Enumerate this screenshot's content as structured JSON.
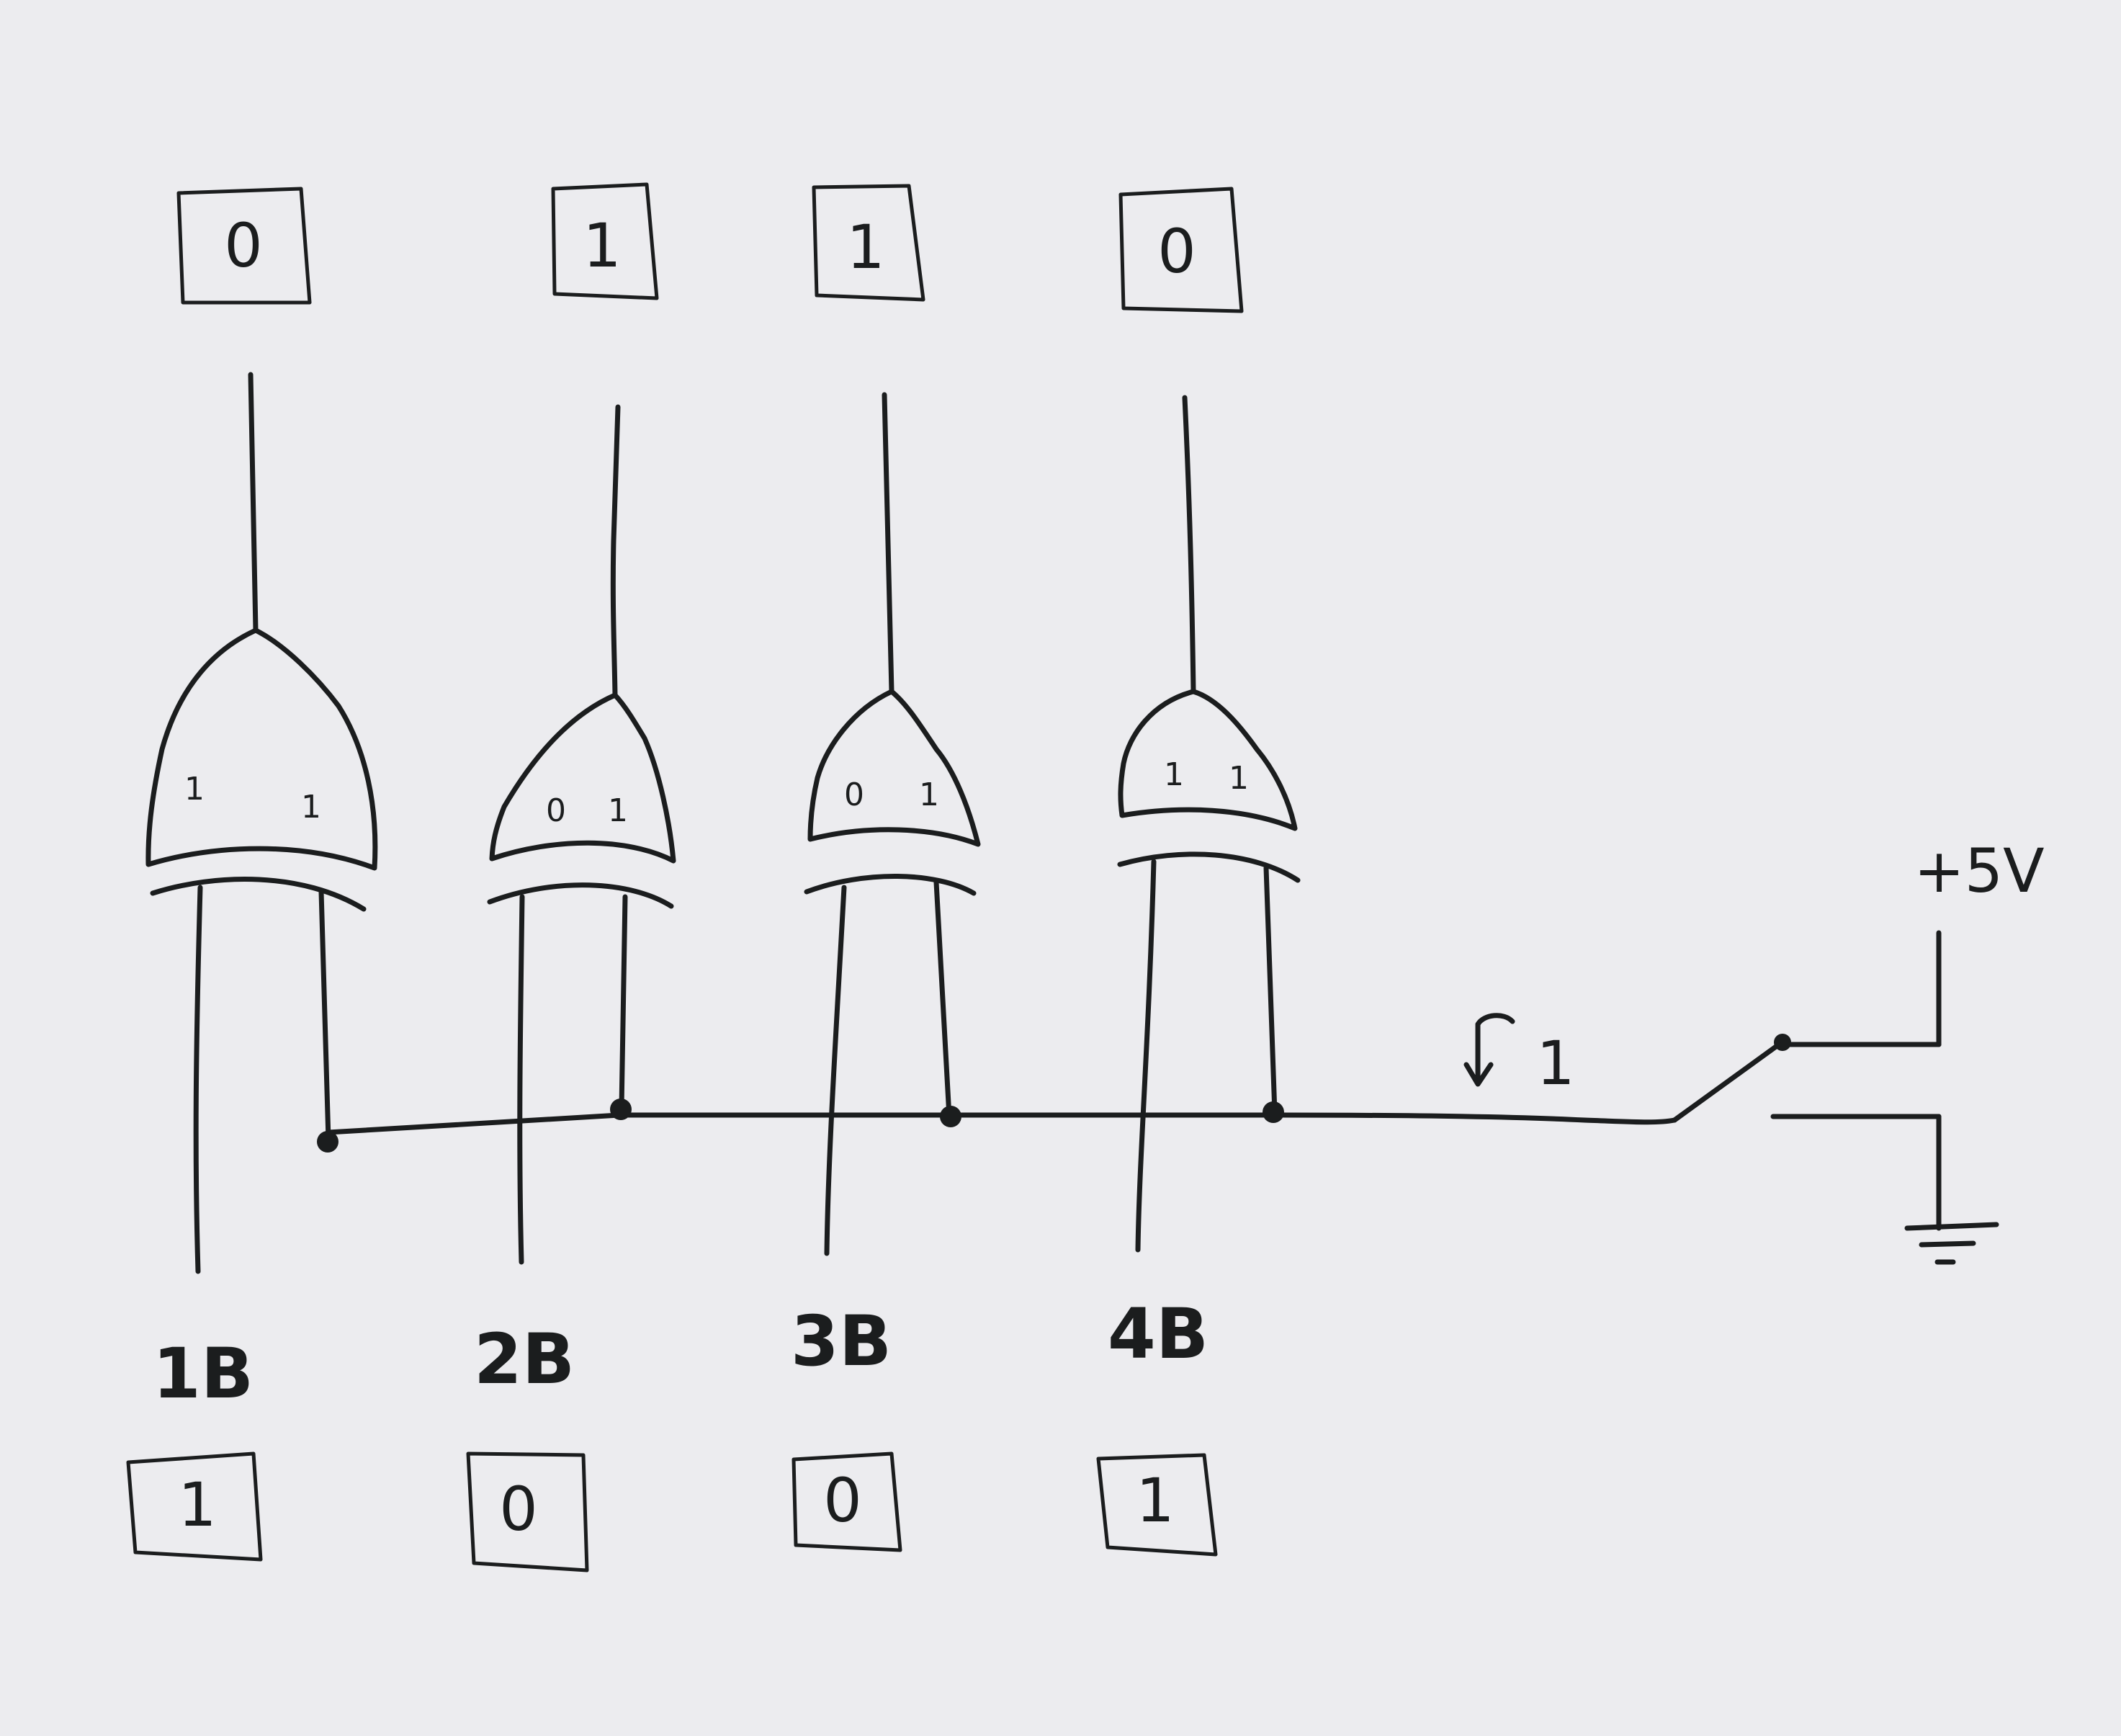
{
  "outputs": [
    "0",
    "1",
    "1",
    "0"
  ],
  "gates": [
    {
      "in_a": "1",
      "in_b": "1"
    },
    {
      "in_a": "0",
      "in_b": "1"
    },
    {
      "in_a": "0",
      "in_b": "1"
    },
    {
      "in_a": "1",
      "in_b": "1"
    }
  ],
  "bus_labels": [
    "1B",
    "2B",
    "3B",
    "4B"
  ],
  "inputs": [
    "1",
    "0",
    "0",
    "1"
  ],
  "switch": {
    "state_label": "1",
    "supply_label": "+5V"
  }
}
